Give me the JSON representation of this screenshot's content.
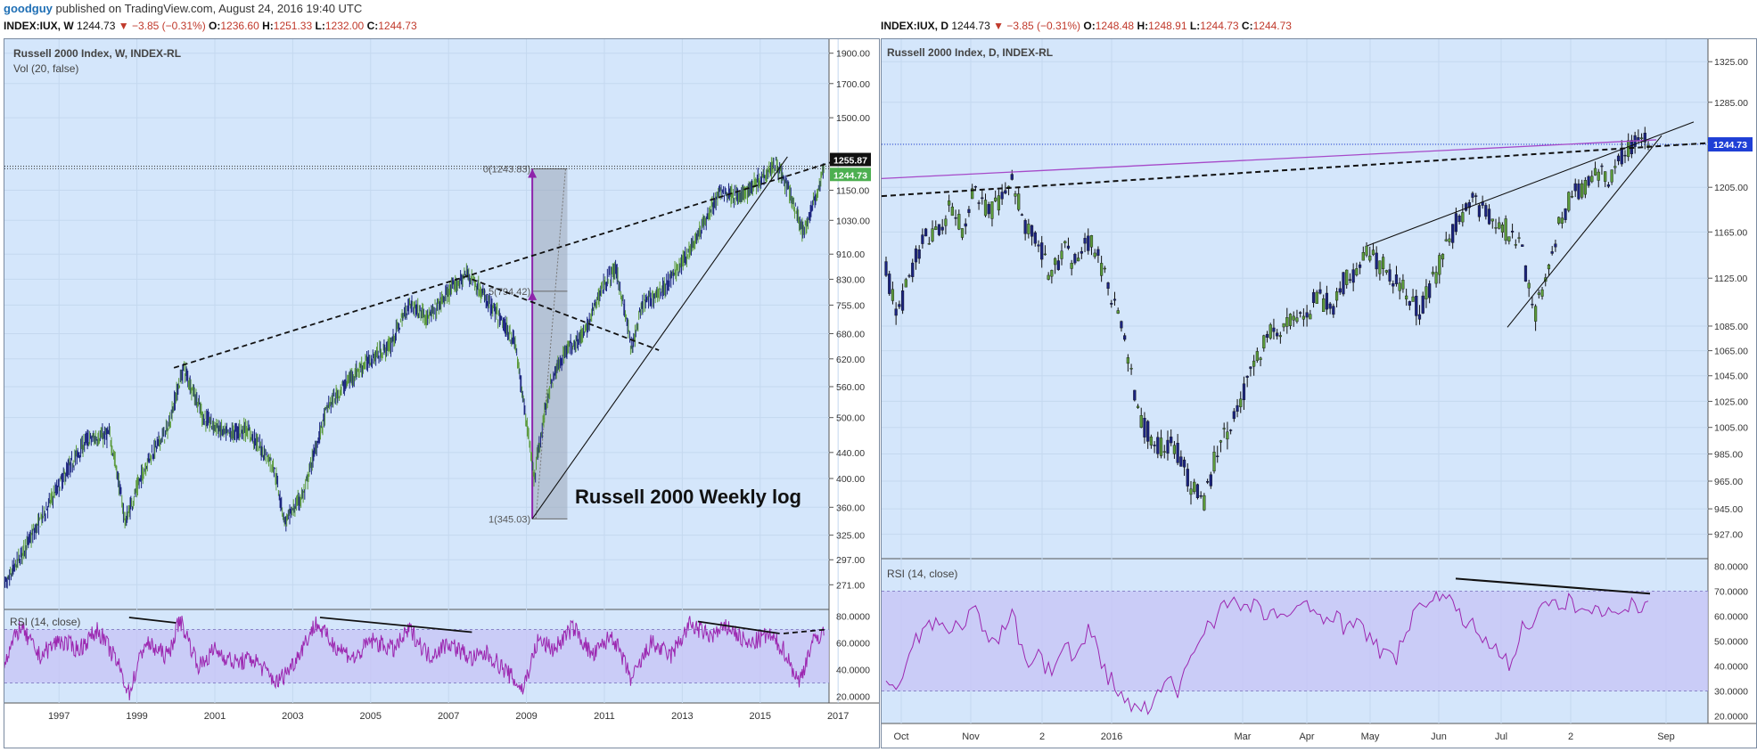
{
  "publish": {
    "user": "goodguy",
    "text": " published on TradingView.com, August 24, 2016 19:40 UTC"
  },
  "left_header": {
    "symbol": "INDEX:IUX, W",
    "last": "1244.73",
    "change": "▼ −3.85 (−0.31%)",
    "o_label": "O:",
    "o": "1236.60",
    "h_label": "H:",
    "h": "1251.33",
    "l_label": "L:",
    "l": "1232.00",
    "c_label": "C:",
    "c": "1244.73"
  },
  "right_header": {
    "symbol": "INDEX:IUX, D",
    "last": "1244.73",
    "change": "▼ −3.85 (−0.31%)",
    "o_label": "O:",
    "o": "1248.48",
    "h_label": "H:",
    "h": "1248.91",
    "l_label": "L:",
    "l": "1244.73",
    "c_label": "C:",
    "c": "1244.73"
  },
  "colors": {
    "pane_bg": "#d4e6fb",
    "candle_up": "#5a9a3a",
    "candle_down": "#1a237e",
    "rsi_line": "#9c27b0",
    "rsi_band": "#c7c3f5",
    "last_price_badge": "#4caf50",
    "daily_price_badge": "#1f3fd6",
    "fib_arrow": "#8e24aa",
    "fib_box": "#9aa6b8"
  },
  "chart_data": [
    {
      "type": "line",
      "name": "weekly_price",
      "title": "Russell 2000 Index, W, INDEX-RL",
      "subtitle": "Vol (20, false)",
      "annotation": "Russell 2000 Weekly log",
      "scale": "log",
      "y_ticks": [
        "1900.00",
        "1700.00",
        "1500.00",
        "1150.00",
        "1030.00",
        "910.00",
        "830.00",
        "755.00",
        "680.00",
        "620.00",
        "560.00",
        "500.00",
        "440.00",
        "400.00",
        "360.00",
        "325.00",
        "297.00",
        "271.00"
      ],
      "x_ticks": [
        "1997",
        "1999",
        "2001",
        "2003",
        "2005",
        "2007",
        "2009",
        "2011",
        "2013",
        "2015",
        "2017"
      ],
      "price_badges": [
        "1255.87",
        "1244.73"
      ],
      "fib_labels": [
        "0(1243.83)",
        "0.5(794.42)",
        "1(345.03)"
      ],
      "x": [
        1995.5,
        1996.5,
        1997.0,
        1997.7,
        1998.3,
        1998.7,
        1999.3,
        1999.8,
        2000.2,
        2000.7,
        2001.3,
        2001.8,
        2002.5,
        2002.8,
        2003.3,
        2003.9,
        2004.5,
        2005.0,
        2005.5,
        2006.0,
        2006.5,
        2007.0,
        2007.5,
        2007.9,
        2008.3,
        2008.7,
        2008.9,
        2009.2,
        2009.6,
        2010.0,
        2010.5,
        2011.0,
        2011.3,
        2011.7,
        2012.0,
        2012.5,
        2013.0,
        2013.5,
        2014.0,
        2014.5,
        2015.0,
        2015.4,
        2015.7,
        2016.1,
        2016.4,
        2016.65
      ],
      "y": [
        260,
        340,
        390,
        460,
        470,
        340,
        430,
        480,
        600,
        500,
        470,
        480,
        420,
        340,
        380,
        520,
        580,
        620,
        650,
        760,
        720,
        790,
        850,
        780,
        720,
        660,
        540,
        400,
        560,
        640,
        680,
        820,
        860,
        640,
        760,
        800,
        880,
        1000,
        1150,
        1120,
        1200,
        1270,
        1160,
        980,
        1110,
        1244
      ]
    },
    {
      "type": "line",
      "name": "weekly_rsi",
      "title": "RSI (14, close)",
      "y_ticks": [
        "80.0000",
        "60.0000",
        "40.0000",
        "20.0000"
      ],
      "ylim": [
        15,
        85
      ],
      "band": [
        30,
        70
      ],
      "x": [
        1995.5,
        1996.0,
        1996.5,
        1997.0,
        1997.5,
        1998.0,
        1998.5,
        1998.8,
        1999.2,
        1999.8,
        2000.1,
        2000.6,
        2001.0,
        2001.5,
        2002.0,
        2002.6,
        2003.0,
        2003.6,
        2004.0,
        2004.6,
        2005.0,
        2005.6,
        2006.0,
        2006.5,
        2007.0,
        2007.6,
        2008.0,
        2008.5,
        2008.9,
        2009.3,
        2009.7,
        2010.2,
        2010.7,
        2011.2,
        2011.7,
        2012.2,
        2012.7,
        2013.2,
        2013.7,
        2014.2,
        2014.7,
        2015.2,
        2015.6,
        2016.0,
        2016.3,
        2016.65
      ],
      "y": [
        40,
        72,
        50,
        62,
        55,
        70,
        45,
        22,
        60,
        50,
        78,
        42,
        55,
        45,
        48,
        30,
        44,
        75,
        60,
        48,
        62,
        55,
        70,
        50,
        60,
        48,
        52,
        38,
        25,
        62,
        55,
        72,
        50,
        66,
        32,
        60,
        50,
        74,
        65,
        72,
        58,
        66,
        55,
        30,
        58,
        70
      ]
    },
    {
      "type": "line",
      "name": "daily_price",
      "title": "Russell 2000 Index, D, INDEX-RL",
      "y_ticks": [
        "1325.00",
        "1285.00",
        "1245.00",
        "1205.00",
        "1165.00",
        "1125.00",
        "1085.00",
        "1065.00",
        "1045.00",
        "1025.00",
        "1005.00",
        "985.00",
        "965.00",
        "945.00",
        "927.00"
      ],
      "x_ticks": [
        "Oct",
        "Nov",
        "2",
        "2016",
        "Mar",
        "Apr",
        "May",
        "Jun",
        "Jul",
        "2",
        "Sep"
      ],
      "price_badges": [
        "1244.73"
      ],
      "y": [
        1130,
        1095,
        1130,
        1165,
        1160,
        1185,
        1170,
        1205,
        1180,
        1195,
        1210,
        1170,
        1160,
        1125,
        1150,
        1135,
        1160,
        1135,
        1100,
        1060,
        1010,
        995,
        990,
        985,
        965,
        945,
        985,
        1005,
        1030,
        1050,
        1075,
        1080,
        1095,
        1090,
        1110,
        1100,
        1120,
        1130,
        1150,
        1135,
        1125,
        1110,
        1100,
        1120,
        1150,
        1175,
        1195,
        1185,
        1175,
        1165,
        1150,
        1090,
        1130,
        1170,
        1200,
        1205,
        1220,
        1215,
        1235,
        1245,
        1250
      ]
    },
    {
      "type": "line",
      "name": "daily_rsi",
      "title": "RSI (14, close)",
      "y_ticks": [
        "80.0000",
        "70.0000",
        "60.0000",
        "50.0000",
        "40.0000",
        "30.0000",
        "20.0000"
      ],
      "ylim": [
        17,
        83
      ],
      "band": [
        30,
        70
      ],
      "y": [
        38,
        30,
        48,
        55,
        60,
        52,
        58,
        62,
        48,
        52,
        60,
        42,
        46,
        36,
        50,
        42,
        56,
        40,
        32,
        25,
        22,
        24,
        34,
        30,
        44,
        55,
        60,
        68,
        62,
        64,
        60,
        62,
        58,
        66,
        60,
        62,
        56,
        60,
        50,
        46,
        42,
        55,
        62,
        70,
        66,
        62,
        56,
        52,
        48,
        40,
        54,
        60,
        64,
        63,
        66,
        62,
        62,
        60,
        66,
        63,
        66
      ]
    }
  ]
}
